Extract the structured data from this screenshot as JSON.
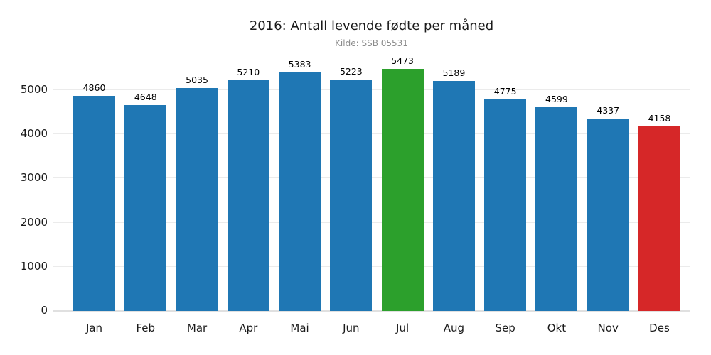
{
  "chart_data": {
    "type": "bar",
    "title": "2016: Antall levende fødte per måned",
    "subtitle": "Kilde: SSB 05531",
    "categories": [
      "Jan",
      "Feb",
      "Mar",
      "Apr",
      "Mai",
      "Jun",
      "Jul",
      "Aug",
      "Sep",
      "Okt",
      "Nov",
      "Des"
    ],
    "values": [
      4860,
      4648,
      5035,
      5210,
      5383,
      5223,
      5473,
      5189,
      4775,
      4599,
      4337,
      4158
    ],
    "data_labels_shown": true,
    "xlabel": "",
    "ylabel": "",
    "yticks": [
      0,
      1000,
      2000,
      3000,
      4000,
      5000
    ],
    "ylim": [
      0,
      5600
    ],
    "grid": "horizontal",
    "legend": "none",
    "colors": {
      "bar_default": "#1f77b4",
      "bar_max": "#2ca02c",
      "bar_min": "#d62728",
      "gridline": "#ebebeb",
      "baseline": "#e0e0e0",
      "subtitle_text": "#8c8c8c",
      "tick_text": "#1a1a1a"
    }
  }
}
